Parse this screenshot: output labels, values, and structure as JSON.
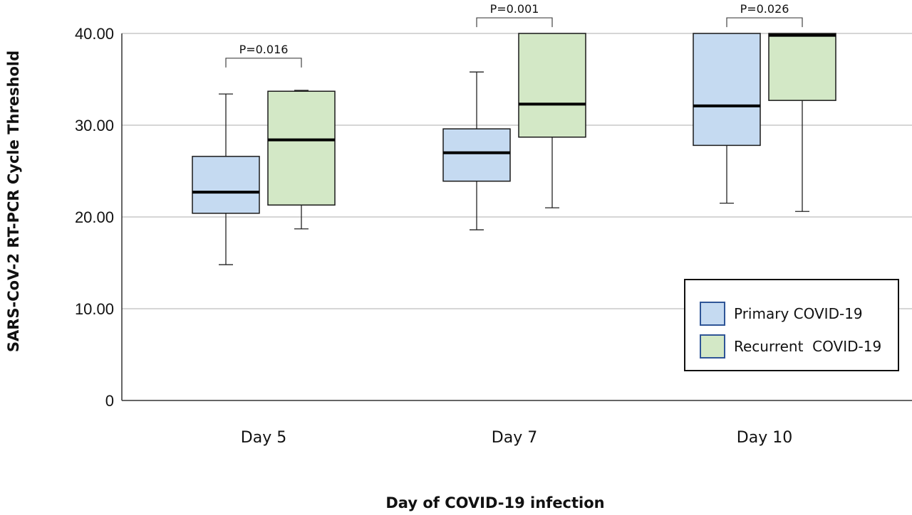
{
  "chart_data": {
    "type": "boxplot",
    "title": "",
    "xlabel": "Day of COVID-19 infection",
    "ylabel": "SARS-CoV-2 RT-PCR Cycle Threshold",
    "ylim": [
      0,
      40
    ],
    "yticks": [
      {
        "value": 0,
        "label": "0"
      },
      {
        "value": 10,
        "label": "10.00"
      },
      {
        "value": 20,
        "label": "20.00"
      },
      {
        "value": 30,
        "label": "30.00"
      },
      {
        "value": 40,
        "label": "40.00"
      }
    ],
    "grid": true,
    "legend_position": "bottom-right",
    "categories": [
      "Day 5",
      "Day 7",
      "Day 10"
    ],
    "series": [
      {
        "name": "Primary COVID-19",
        "color": "#c5daf1",
        "stroke": "#1a1a1a",
        "legend_stroke": "#2f5597",
        "boxes": [
          {
            "min": 14.8,
            "q1": 20.4,
            "median": 22.7,
            "q3": 26.6,
            "max": 33.4
          },
          {
            "min": 18.6,
            "q1": 23.9,
            "median": 27.0,
            "q3": 29.6,
            "max": 35.8
          },
          {
            "min": 21.5,
            "q1": 27.8,
            "median": 32.1,
            "q3": 40.0,
            "max": 40.0
          }
        ]
      },
      {
        "name": "Recurrent  COVID-19",
        "color": "#d3e8c6",
        "stroke": "#1a1a1a",
        "legend_stroke": "#2f5597",
        "boxes": [
          {
            "min": 18.7,
            "q1": 21.3,
            "median": 28.4,
            "q3": 33.7,
            "max": 33.8
          },
          {
            "min": 21.0,
            "q1": 28.7,
            "median": 32.3,
            "q3": 40.0,
            "max": 40.0
          },
          {
            "min": 20.6,
            "q1": 32.7,
            "median": 39.8,
            "q3": 40.0,
            "max": 40.0
          }
        ]
      }
    ],
    "annotations": [
      {
        "category": "Day 5",
        "text": "P=0.016",
        "y": 37.3
      },
      {
        "category": "Day 7",
        "text": "P=0.001",
        "y": 41.7
      },
      {
        "category": "Day 10",
        "text": "P=0.026",
        "y": 41.7
      }
    ]
  }
}
